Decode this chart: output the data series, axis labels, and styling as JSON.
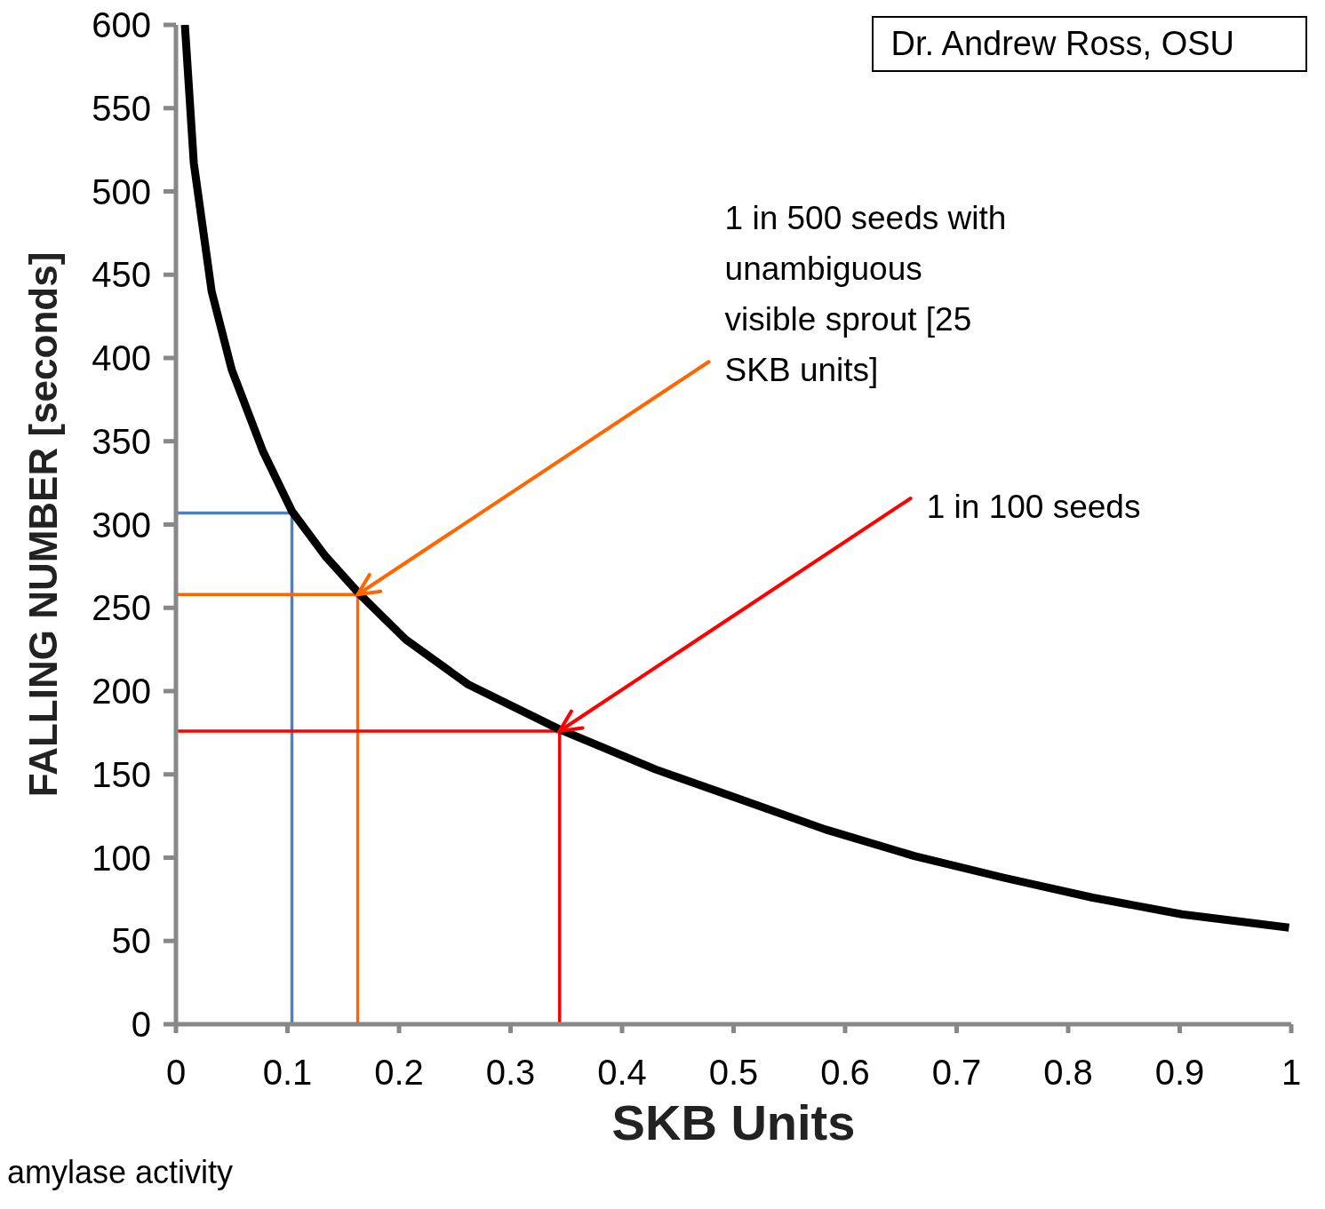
{
  "chart_data": {
    "type": "line",
    "xlabel": "SKB Units",
    "ylabel": "FALLING NUMBER [seconds]",
    "xlim": [
      0,
      1
    ],
    "xticks": [
      0,
      0.1,
      0.2,
      0.3,
      0.4,
      0.5,
      0.6,
      0.7,
      0.8,
      0.9,
      1
    ],
    "ylim": [
      0,
      600
    ],
    "yticks": [
      0,
      50,
      100,
      150,
      200,
      250,
      300,
      350,
      400,
      450,
      500,
      550,
      600
    ],
    "grid": false,
    "marker": "none",
    "line_style": "solid",
    "series": [
      {
        "color": "#000000",
        "x": [
          0.008,
          0.016,
          0.032,
          0.05,
          0.078,
          0.104,
          0.134,
          0.165,
          0.206,
          0.262,
          0.344,
          0.43,
          0.502,
          0.582,
          0.662,
          0.742,
          0.822,
          0.902,
          0.998
        ],
        "values": [
          600,
          517,
          440,
          393,
          344,
          308,
          281,
          258,
          231,
          204,
          177,
          153,
          136,
          117,
          101,
          88,
          76,
          66,
          58
        ]
      },
      {
        "color": "#4f81bd",
        "x": [
          0,
          0.104,
          0.104
        ],
        "values": [
          307,
          307,
          0
        ]
      },
      {
        "color": "#ff6600",
        "x": [
          0,
          0.163,
          0.163
        ],
        "values": [
          258,
          258,
          0
        ]
      },
      {
        "color": "#ff0000",
        "x": [
          0,
          0.344,
          0.344
        ],
        "values": [
          176,
          176,
          0
        ]
      }
    ],
    "annotations": [
      {
        "text": "1 in 500 seeds with unambiguous visible sprout [25 SKB units]",
        "x": 0.163,
        "y": 258
      },
      {
        "text": "1 in 100 seeds",
        "x": 0.344,
        "y": 176
      },
      "Dr. Andrew Ross, OSU",
      "amylase activity"
    ]
  }
}
